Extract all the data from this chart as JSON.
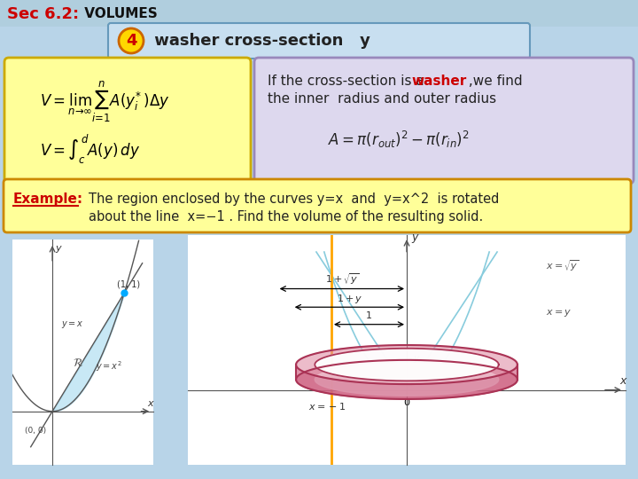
{
  "title_sec": "Sec 6.2:",
  "title_vol": " VOLUMES",
  "bg_color": "#b8d4e8",
  "number_badge": "4",
  "badge_bg": "#FFD700",
  "badge_border": "#cc6600",
  "badge_text": "#cc0000",
  "section_header_text": " washer cross-section   y",
  "section_header_bg": "#c8dff0",
  "section_header_border": "#6699bb",
  "formula_box_bg": "#FFFF99",
  "formula_box_border": "#ccaa00",
  "info_box_bg": "#ddd8ee",
  "info_box_border": "#9988bb",
  "info_text1": "If the cross-section is a ",
  "info_washer": "washer",
  "info_text3": " ,we find",
  "info_text4": "the inner  radius and outer radius",
  "example_box_bg": "#FFFF99",
  "example_box_border": "#cc8800",
  "example_label": "Example:",
  "example_text1": "The region enclosed by the curves y=x  and  y=x^2  is rotated",
  "example_text2": "about the line  x=−1 . Find the volume of the resulting solid."
}
